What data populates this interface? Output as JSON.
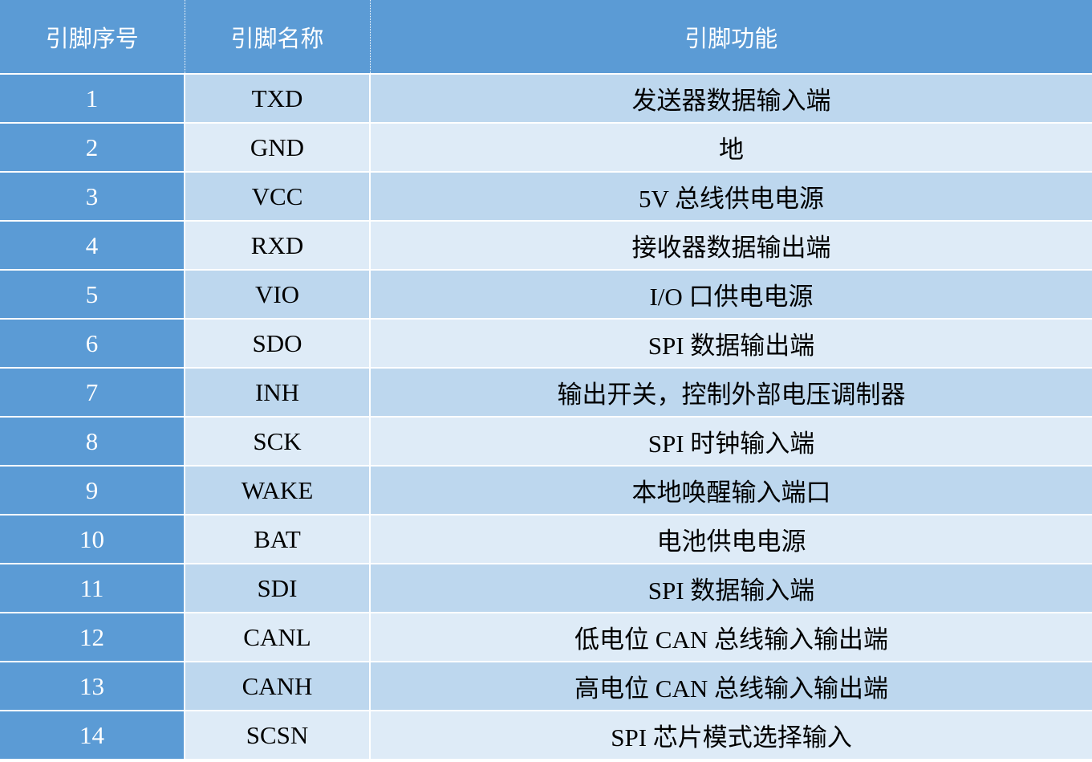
{
  "colors": {
    "header": "#5b9bd5",
    "row_odd": "#bdd7ee",
    "row_even": "#deebf7"
  },
  "headers": [
    "引脚序号",
    "引脚名称",
    "引脚功能"
  ],
  "rows": [
    [
      "1",
      "TXD",
      "发送器数据输入端"
    ],
    [
      "2",
      "GND",
      "地"
    ],
    [
      "3",
      "VCC",
      "5V 总线供电电源"
    ],
    [
      "4",
      "RXD",
      "接收器数据输出端"
    ],
    [
      "5",
      "VIO",
      "I/O 口供电电源"
    ],
    [
      "6",
      "SDO",
      "SPI 数据输出端"
    ],
    [
      "7",
      "INH",
      "输出开关，控制外部电压调制器"
    ],
    [
      "8",
      "SCK",
      "SPI 时钟输入端"
    ],
    [
      "9",
      "WAKE",
      "本地唤醒输入端口"
    ],
    [
      "10",
      "BAT",
      "电池供电电源"
    ],
    [
      "11",
      "SDI",
      "SPI 数据输入端"
    ],
    [
      "12",
      "CANL",
      "低电位 CAN 总线输入输出端"
    ],
    [
      "13",
      "CANH",
      "高电位 CAN 总线输入输出端"
    ],
    [
      "14",
      "SCSN",
      "SPI 芯片模式选择输入"
    ]
  ]
}
